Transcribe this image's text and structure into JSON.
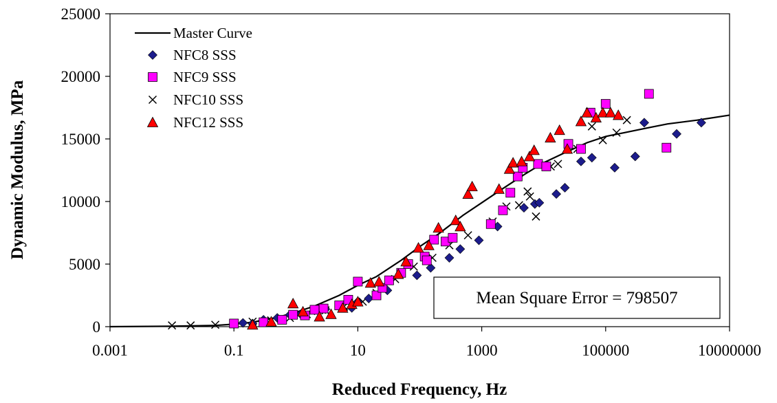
{
  "chart_data": {
    "type": "scatter",
    "title": "",
    "xlabel": "Reduced Frequency, Hz",
    "ylabel": "Dynamic Modulus, MPa",
    "xscale": "log",
    "xlim": [
      0.001,
      10000000
    ],
    "ylim": [
      0,
      25000
    ],
    "xticks": [
      0.001,
      0.1,
      10,
      1000,
      100000,
      10000000
    ],
    "xtick_labels": [
      "0.001",
      "0.1",
      "10",
      "1000",
      "100000",
      "10000000"
    ],
    "yticks": [
      0,
      5000,
      10000,
      15000,
      20000,
      25000
    ],
    "ytick_labels": [
      "0",
      "5000",
      "10000",
      "15000",
      "20000",
      "25000"
    ],
    "grid": false,
    "legend_position": "top-left",
    "annotation": "Mean Square Error = 798507",
    "master_curve": {
      "name": "Master Curve",
      "color": "#000000",
      "x": [
        0.001,
        0.01,
        0.05,
        0.1,
        0.2,
        0.5,
        1,
        2,
        5,
        10,
        20,
        50,
        100,
        200,
        500,
        1000,
        2000,
        5000,
        10000,
        20000,
        50000,
        100000,
        200000,
        500000,
        1000000,
        3000000,
        10000000
      ],
      "y": [
        0,
        40,
        100,
        200,
        350,
        750,
        1150,
        1650,
        2500,
        3300,
        4000,
        5300,
        6400,
        7400,
        8900,
        9900,
        10900,
        12200,
        13100,
        13800,
        14700,
        15200,
        15500,
        15900,
        16200,
        16500,
        16900
      ]
    },
    "series": [
      {
        "name": "NFC8 SSS",
        "marker": "diamond",
        "color": "#1c1c8c",
        "x": [
          0.1,
          0.14,
          0.2,
          0.3,
          0.5,
          0.8,
          1.2,
          2,
          3,
          5,
          8,
          10,
          15,
          30,
          90,
          150,
          300,
          450,
          900,
          1800,
          4800,
          7200,
          8500,
          16000,
          22000,
          40000,
          60000,
          140000,
          300000,
          420000,
          1400000,
          3500000
        ],
        "y": [
          200,
          300,
          250,
          550,
          700,
          950,
          1000,
          1300,
          1400,
          1600,
          1500,
          2000,
          2250,
          2900,
          4100,
          4700,
          5500,
          6200,
          6900,
          8000,
          9500,
          9800,
          9900,
          10600,
          11100,
          13200,
          13500,
          12700,
          13600,
          16300,
          15400,
          16300
        ]
      },
      {
        "name": "NFC9 SSS",
        "marker": "square",
        "color": "#ff00ff",
        "x": [
          0.1,
          0.3,
          0.6,
          0.9,
          1.4,
          2,
          2.8,
          5,
          7,
          10,
          20,
          25,
          32,
          50,
          65,
          120,
          130,
          170,
          260,
          340,
          1400,
          2200,
          2900,
          3800,
          4600,
          8100,
          11000,
          25000,
          40000,
          57000,
          100000,
          500000,
          960000
        ],
        "y": [
          250,
          350,
          550,
          950,
          900,
          1350,
          1450,
          1700,
          2150,
          3600,
          2500,
          3100,
          3700,
          4300,
          5000,
          5600,
          5300,
          6950,
          6800,
          7100,
          8200,
          9300,
          10700,
          12000,
          12700,
          13000,
          12800,
          14600,
          14200,
          17100,
          17800,
          18600,
          14300
        ]
      },
      {
        "name": "NFC10 SSS",
        "marker": "x",
        "color": "#000000",
        "x": [
          0.01,
          0.02,
          0.05,
          0.1,
          0.2,
          0.4,
          0.8,
          1.5,
          3,
          6,
          12,
          20,
          40,
          80,
          160,
          300,
          600,
          1500,
          2500,
          4000,
          5500,
          6000,
          7500,
          13000,
          17000,
          35000,
          60000,
          90000,
          150000,
          220000
        ],
        "y": [
          100,
          100,
          150,
          250,
          400,
          500,
          700,
          1000,
          1300,
          1600,
          2000,
          2700,
          3800,
          4800,
          5500,
          6500,
          7300,
          8400,
          9600,
          9700,
          10800,
          10400,
          8800,
          12800,
          13000,
          14200,
          16000,
          14900,
          15500,
          16500
        ]
      },
      {
        "name": "NFC12 SSS",
        "marker": "triangle",
        "color": "#ff0000",
        "x": [
          0.2,
          0.4,
          0.9,
          1.3,
          2.4,
          3.7,
          5.7,
          8,
          10,
          16,
          22,
          45,
          60,
          95,
          140,
          200,
          380,
          450,
          600,
          700,
          1900,
          2800,
          3200,
          4400,
          5900,
          7000,
          12800,
          18000,
          24000,
          40000,
          50000,
          70000,
          90000,
          120000,
          160000
        ],
        "y": [
          150,
          400,
          1850,
          1200,
          800,
          1000,
          1500,
          1800,
          2000,
          3500,
          3600,
          4200,
          5200,
          6300,
          6500,
          7900,
          8500,
          8000,
          10600,
          11200,
          11000,
          12600,
          13100,
          13200,
          13600,
          14100,
          15100,
          15700,
          14200,
          16400,
          17100,
          16700,
          17100,
          17100,
          16900
        ]
      }
    ]
  }
}
